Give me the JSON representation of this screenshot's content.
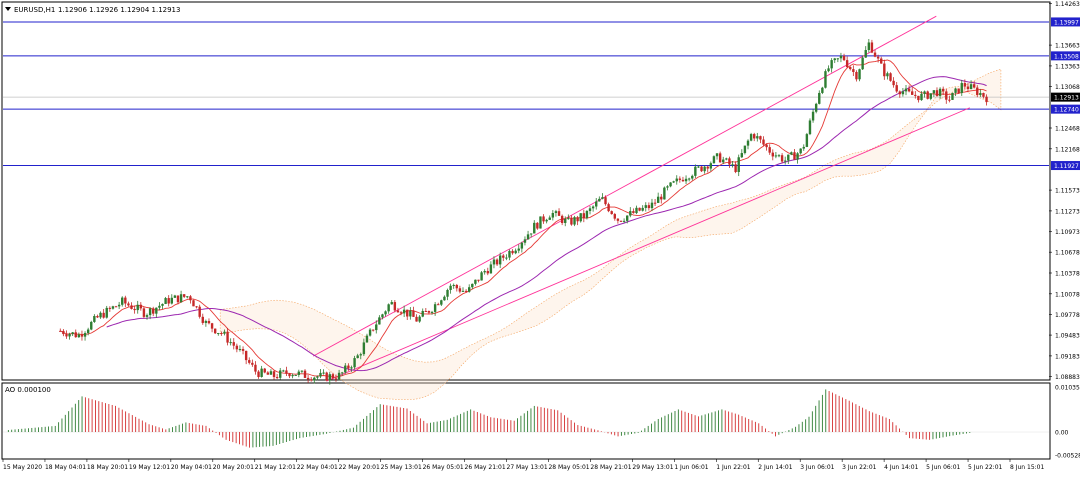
{
  "header": {
    "symbol": "EURUSD,H1",
    "ohlc": "1.12906 1.12926 1.12904 1.12913"
  },
  "indicator": {
    "label": "AO 0.000100"
  },
  "colors": {
    "bull": "#2e7d32",
    "bear": "#c62828",
    "hline": "#2222cc",
    "channel": "#ff3399",
    "ma_fast": "#e53935",
    "ma_slow": "#9c27b0",
    "ichimoku": "#f4a460",
    "ao_up": "#2e7d32",
    "ao_down": "#d32f2f"
  },
  "chart_data": [
    {
      "type": "candlestick",
      "title": "EURUSD,H1",
      "y_ticks": [
        "1.14263",
        "1.13663",
        "1.13363",
        "1.13068",
        "1.12468",
        "1.12168",
        "1.11573",
        "1.11273",
        "1.10973",
        "1.10678",
        "1.10378",
        "1.10078",
        "1.09778",
        "1.09483",
        "1.09183",
        "1.08883"
      ],
      "ylim": [
        1.0885,
        1.1427
      ],
      "x_ticks": [
        "15 May 2020",
        "18 May 04:01",
        "18 May 20:01",
        "19 May 12:01",
        "20 May 04:01",
        "20 May 20:01",
        "21 May 12:01",
        "22 May 04:01",
        "22 May 20:01",
        "25 May 13:01",
        "26 May 05:01",
        "26 May 21:01",
        "27 May 13:01",
        "28 May 05:01",
        "28 May 21:01",
        "29 May 13:01",
        "1 Jun 06:01",
        "1 Jun 22:01",
        "2 Jun 14:01",
        "3 Jun 06:01",
        "3 Jun 22:01",
        "4 Jun 14:01",
        "5 Jun 06:01",
        "5 Jun 22:01",
        "8 Jun 15:01"
      ],
      "price_levels": [
        {
          "label": "1.13997",
          "value": 1.13997
        },
        {
          "label": "1.13508",
          "value": 1.13508
        },
        {
          "label": "1.12913",
          "value": 1.12913,
          "current": true
        },
        {
          "label": "1.12740",
          "value": 1.1274
        },
        {
          "label": "1.11927",
          "value": 1.11927
        }
      ],
      "close_path": [
        [
          0,
          1.0886
        ],
        [
          0.3,
          1.0918
        ],
        [
          1.0,
          1.0935
        ],
        [
          1.6,
          1.0955
        ],
        [
          2.2,
          1.0948
        ],
        [
          2.8,
          1.0975
        ],
        [
          3.5,
          1.0996
        ],
        [
          4.2,
          1.098
        ],
        [
          4.9,
          1.0999
        ],
        [
          5.5,
          1.1005
        ],
        [
          6.0,
          1.0965
        ],
        [
          6.5,
          1.095
        ],
        [
          7.0,
          1.0925
        ],
        [
          7.5,
          1.0895
        ],
        [
          8.0,
          1.0889
        ],
        [
          8.5,
          1.0895
        ],
        [
          9.0,
          1.089
        ],
        [
          9.5,
          1.0888
        ],
        [
          10.0,
          1.089
        ],
        [
          10.5,
          1.0915
        ],
        [
          11.0,
          1.096
        ],
        [
          11.5,
          1.0995
        ],
        [
          12.0,
          1.098
        ],
        [
          12.3,
          1.097
        ],
        [
          12.8,
          1.099
        ],
        [
          13.3,
          1.102
        ],
        [
          13.8,
          1.101
        ],
        [
          14.3,
          1.104
        ],
        [
          14.8,
          1.1058
        ],
        [
          15.3,
          1.1078
        ],
        [
          15.8,
          1.1105
        ],
        [
          16.3,
          1.1125
        ],
        [
          16.8,
          1.111
        ],
        [
          17.3,
          1.112
        ],
        [
          17.8,
          1.1145
        ],
        [
          18.3,
          1.1115
        ],
        [
          18.8,
          1.1125
        ],
        [
          19.3,
          1.1135
        ],
        [
          19.8,
          1.116
        ],
        [
          20.3,
          1.1178
        ],
        [
          20.8,
          1.119
        ],
        [
          21.3,
          1.1205
        ],
        [
          21.8,
          1.1188
        ],
        [
          22.3,
          1.124
        ],
        [
          22.8,
          1.1215
        ],
        [
          23.3,
          1.12
        ],
        [
          23.8,
          1.1215
        ],
        [
          24.3,
          1.13
        ],
        [
          24.6,
          1.1335
        ],
        [
          25.0,
          1.135
        ],
        [
          25.4,
          1.1322
        ],
        [
          25.8,
          1.137
        ],
        [
          26.2,
          1.133
        ],
        [
          26.6,
          1.1305
        ],
        [
          27.0,
          1.1295
        ],
        [
          27.4,
          1.1292
        ],
        [
          27.8,
          1.13
        ],
        [
          28.2,
          1.1288
        ],
        [
          28.6,
          1.131
        ],
        [
          29.0,
          1.13
        ],
        [
          29.3,
          1.1291
        ]
      ],
      "channel_upper": {
        "from": [
          9.2,
          1.0918
        ],
        "to": [
          27.8,
          1.1408
        ]
      },
      "channel_lower": {
        "from": [
          9.6,
          1.0882
        ],
        "to": [
          28.8,
          1.1276
        ]
      },
      "indicators": [
        "MA fast",
        "MA slow",
        "Ichimoku Kumo"
      ]
    },
    {
      "type": "histogram",
      "title": "AO 0.000100",
      "y_ticks": [
        "0.010356",
        "0.00",
        "-0.005288"
      ],
      "ylim": [
        -0.005288,
        0.010356
      ],
      "ao_path": [
        [
          0,
          0.0004
        ],
        [
          1.5,
          0.0014
        ],
        [
          2.3,
          0.0082
        ],
        [
          3.3,
          0.006
        ],
        [
          4.3,
          0.0018
        ],
        [
          4.8,
          0.0006
        ],
        [
          5.4,
          0.0022
        ],
        [
          6.0,
          0.0014
        ],
        [
          6.6,
          -0.0018
        ],
        [
          7.3,
          -0.0036
        ],
        [
          8.0,
          -0.0032
        ],
        [
          8.8,
          -0.0014
        ],
        [
          9.6,
          -0.0004
        ],
        [
          10.4,
          0.001
        ],
        [
          11.2,
          0.0064
        ],
        [
          12.0,
          0.0054
        ],
        [
          12.6,
          0.002
        ],
        [
          13.2,
          0.0028
        ],
        [
          13.9,
          0.0052
        ],
        [
          14.5,
          0.0034
        ],
        [
          15.2,
          0.0026
        ],
        [
          15.8,
          0.006
        ],
        [
          16.5,
          0.005
        ],
        [
          17.1,
          0.0016
        ],
        [
          17.7,
          0.0004
        ],
        [
          18.3,
          -0.001
        ],
        [
          18.9,
          -0.0002
        ],
        [
          19.5,
          0.003
        ],
        [
          20.1,
          0.0052
        ],
        [
          20.7,
          0.0036
        ],
        [
          21.4,
          0.0052
        ],
        [
          21.9,
          0.004
        ],
        [
          22.5,
          0.002
        ],
        [
          23.0,
          -0.001
        ],
        [
          23.6,
          0.0012
        ],
        [
          24.0,
          0.0035
        ],
        [
          24.5,
          0.0098
        ],
        [
          25.2,
          0.0072
        ],
        [
          25.8,
          0.0048
        ],
        [
          26.4,
          0.003
        ],
        [
          27.0,
          -0.0014
        ],
        [
          27.6,
          -0.0018
        ],
        [
          28.3,
          -0.0008
        ],
        [
          28.9,
          -0.0001
        ]
      ]
    }
  ]
}
